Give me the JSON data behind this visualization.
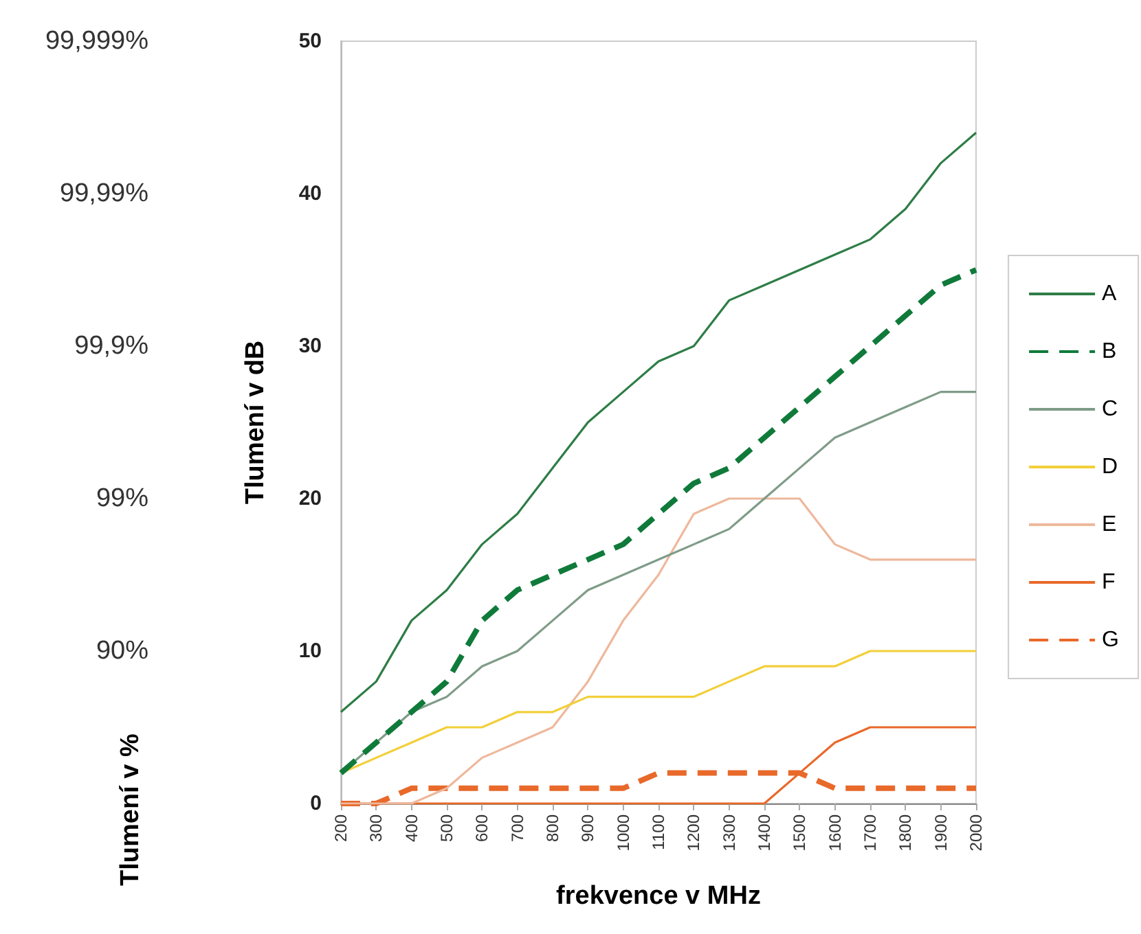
{
  "chart_data": {
    "type": "line",
    "xlabel": "frekvence v MHz",
    "ylabel": "Tlumení v dB",
    "categories": [
      "200",
      "300",
      "400",
      "500",
      "600",
      "700",
      "800",
      "900",
      "1000",
      "1100",
      "1200",
      "1300",
      "1400",
      "1500",
      "1600",
      "1700",
      "1800",
      "1900",
      "2000"
    ],
    "series": [
      {
        "name": "A",
        "color": "#2e7d46",
        "line_style": "solid",
        "values": [
          6,
          8,
          12,
          14,
          17,
          19,
          22,
          25,
          27,
          29,
          30,
          33,
          34,
          35,
          36,
          37,
          39,
          42,
          44
        ]
      },
      {
        "name": "B",
        "color": "#0f7a3a",
        "line_style": "dashed",
        "values": [
          2,
          4,
          6,
          8,
          12,
          14,
          15,
          16,
          17,
          19,
          21,
          22,
          24,
          26,
          28,
          30,
          32,
          34,
          35
        ]
      },
      {
        "name": "C",
        "color": "#7f9c88",
        "line_style": "solid",
        "values": [
          2,
          4,
          6,
          7,
          9,
          10,
          12,
          14,
          15,
          16,
          17,
          18,
          20,
          22,
          24,
          25,
          26,
          27,
          27
        ]
      },
      {
        "name": "D",
        "color": "#f2cf3a",
        "line_style": "solid",
        "values": [
          2,
          3,
          4,
          5,
          5,
          6,
          6,
          7,
          7,
          7,
          7,
          8,
          9,
          9,
          9,
          10,
          10,
          10,
          10
        ]
      },
      {
        "name": "E",
        "color": "#eeb89c",
        "line_style": "solid",
        "values": [
          0,
          0,
          0,
          1,
          3,
          4,
          5,
          8,
          12,
          15,
          19,
          20,
          20,
          20,
          17,
          16,
          16,
          16,
          16
        ]
      },
      {
        "name": "F",
        "color": "#e8692a",
        "line_style": "solid",
        "values": [
          0,
          0,
          0,
          0,
          0,
          0,
          0,
          0,
          0,
          0,
          0,
          0,
          0,
          2,
          4,
          5,
          5,
          5,
          5
        ]
      },
      {
        "name": "G",
        "color": "#e8692a",
        "line_style": "dashed",
        "values": [
          0,
          0,
          1,
          1,
          1,
          1,
          1,
          1,
          1,
          2,
          2,
          2,
          2,
          2,
          1,
          1,
          1,
          1,
          1
        ]
      }
    ],
    "ylim": [
      0,
      50
    ],
    "yticks": [
      0,
      10,
      20,
      30,
      40,
      50
    ],
    "annotations": [
      "Tlumení v %",
      "90%",
      "99%",
      "99,9%",
      "99,99%",
      "99,999%"
    ],
    "grid": false,
    "legend": "right",
    "marker": "none"
  }
}
